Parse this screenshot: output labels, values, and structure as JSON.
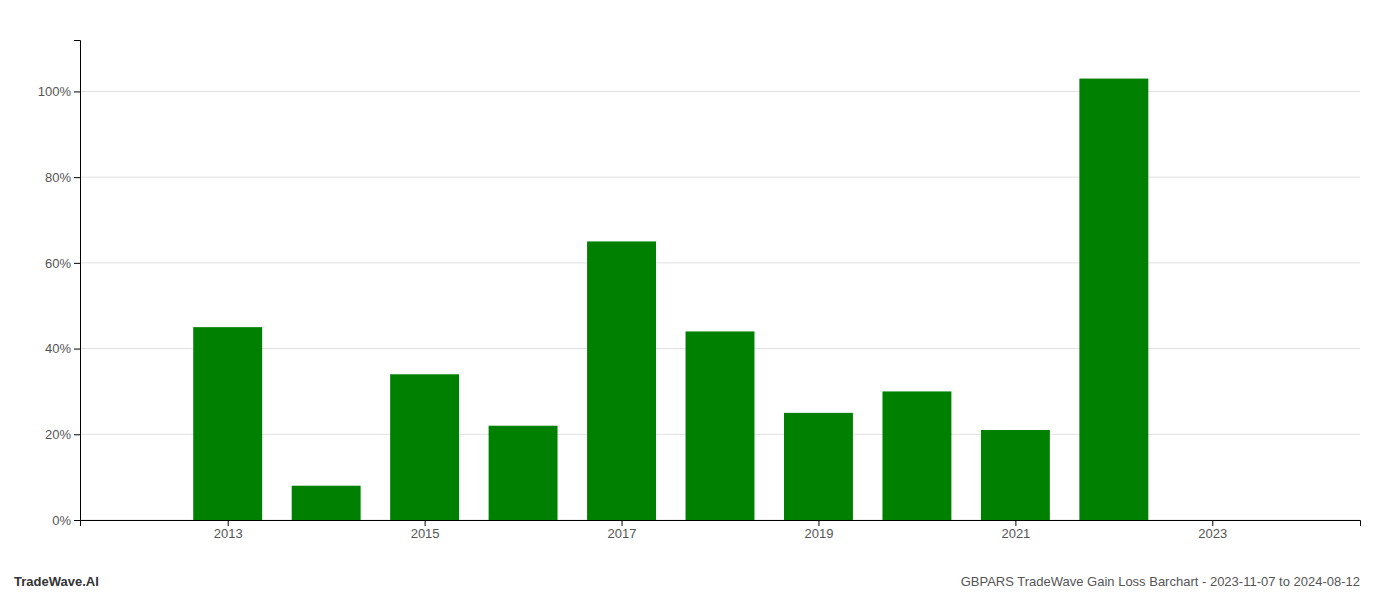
{
  "chart_data": {
    "type": "bar",
    "title": "GBPARS TradeWave Gain Loss Barchart - 2023-11-07 to 2024-08-12",
    "annotations": [
      "TradeWave.AI"
    ],
    "x": [
      2013,
      2014,
      2015,
      2016,
      2017,
      2018,
      2019,
      2020,
      2021,
      2022
    ],
    "values": [
      0.45,
      0.08,
      0.34,
      0.22,
      0.65,
      0.44,
      0.25,
      0.3,
      0.21,
      1.03
    ],
    "color": "#008000",
    "xlim": [
      2011.5,
      2024.5
    ],
    "xticks": [
      2013,
      2015,
      2017,
      2019,
      2021,
      2023
    ],
    "ylim": [
      0,
      1.12
    ],
    "yticks": [
      {
        "value": 0.0,
        "label": "0%"
      },
      {
        "value": 0.2,
        "label": "20%"
      },
      {
        "value": 0.4,
        "label": "40%"
      },
      {
        "value": 0.6,
        "label": "60%"
      },
      {
        "value": 0.8,
        "label": "80%"
      },
      {
        "value": 1.0,
        "label": "100%"
      }
    ],
    "grid": "y"
  }
}
